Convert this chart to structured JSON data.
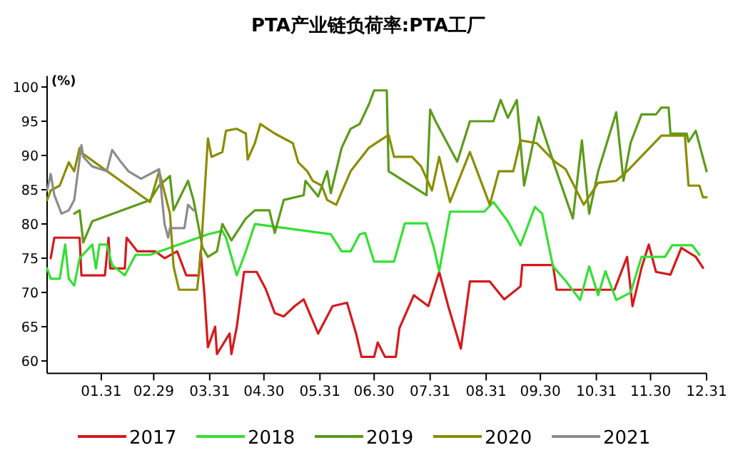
{
  "chart_data": {
    "type": "line",
    "title": "PTA产业链负荷率:PTA工厂",
    "ylabel": "(%)",
    "xlim": [
      "--01-01",
      "--12-31"
    ],
    "ylim": [
      58.2,
      101.6
    ],
    "yticks": [
      60,
      65,
      70,
      75,
      80,
      85,
      90,
      95,
      100
    ],
    "xticks": [
      {
        "value": "--01-31",
        "label": "01.31"
      },
      {
        "value": "--02-29",
        "label": "02.29"
      },
      {
        "value": "--03-31",
        "label": "03.31"
      },
      {
        "value": "--04-30",
        "label": "04.30"
      },
      {
        "value": "--05-31",
        "label": "05.31"
      },
      {
        "value": "--06-30",
        "label": "06.30"
      },
      {
        "value": "--07-31",
        "label": "07.31"
      },
      {
        "value": "--08-31",
        "label": "08.31"
      },
      {
        "value": "--09-30",
        "label": "09.30"
      },
      {
        "value": "--10-31",
        "label": "10.31"
      },
      {
        "value": "--11-30",
        "label": "11.30"
      },
      {
        "value": "--12-31",
        "label": "12.31"
      }
    ],
    "legend": "bottom",
    "grid": false,
    "marker": "none",
    "line_style": "solid",
    "series": [
      {
        "name": "2017",
        "color": "#d7191c",
        "x": [
          "--01-03",
          "--01-05",
          "--01-19",
          "--01-20",
          "--02-02",
          "--02-04",
          "--02-05",
          "--02-13",
          "--02-14",
          "--02-20",
          "--03-01",
          "--03-06",
          "--03-13",
          "--03-18",
          "--03-25",
          "--03-26",
          "--03-28",
          "--03-30",
          "--04-03",
          "--04-04",
          "--04-11",
          "--04-12",
          "--04-15",
          "--04-19",
          "--04-26",
          "--05-01",
          "--05-06",
          "--05-11",
          "--05-17",
          "--05-22",
          "--05-30",
          "--06-07",
          "--06-15",
          "--06-20",
          "--06-23",
          "--06-30",
          "--07-02",
          "--07-06",
          "--07-12",
          "--07-14",
          "--07-22",
          "--07-30",
          "--08-05",
          "--08-10",
          "--08-17",
          "--08-22",
          "--09-02",
          "--09-10",
          "--09-19",
          "--09-20",
          "--10-07",
          "--10-09",
          "--11-10",
          "--11-17",
          "--11-20",
          "--11-25",
          "--11-29",
          "--12-03",
          "--12-11",
          "--12-17",
          "--12-25",
          "--12-29"
        ],
        "values": [
          75,
          78,
          78,
          72.5,
          72.5,
          78,
          73.5,
          73.5,
          78,
          76,
          76,
          75,
          76,
          72.5,
          72.5,
          76,
          70,
          62,
          65,
          61,
          64,
          61,
          65,
          73,
          73,
          70.5,
          67,
          66.5,
          68,
          69,
          64,
          68,
          68.5,
          64,
          60.6,
          60.6,
          62.7,
          60.6,
          60.6,
          64.8,
          69.6,
          68,
          73,
          68,
          61.8,
          71.6,
          71.6,
          69,
          70.9,
          74,
          74,
          70.4,
          70.4,
          75.2,
          68,
          73.6,
          77,
          73,
          72.6,
          76.5,
          75.2,
          73.6
        ]
      },
      {
        "name": "2018",
        "color": "#33e033",
        "x": [
          "--01-01",
          "--01-03",
          "--01-08",
          "--01-11",
          "--01-13",
          "--01-16",
          "--01-19",
          "--01-26",
          "--01-28",
          "--01-30",
          "--02-03",
          "--02-06",
          "--02-13",
          "--02-19",
          "--02-27",
          "--03-30",
          "--04-07",
          "--04-09",
          "--04-15",
          "--04-20",
          "--04-25",
          "--06-06",
          "--06-12",
          "--06-17",
          "--06-22",
          "--06-25",
          "--06-30",
          "--07-11",
          "--07-17",
          "--07-29",
          "--08-02",
          "--08-05",
          "--08-11",
          "--08-30",
          "--09-04",
          "--09-12",
          "--09-19",
          "--09-27",
          "--10-01",
          "--10-07",
          "--10-14",
          "--10-22",
          "--10-27",
          "--11-01",
          "--11-05",
          "--11-11",
          "--11-19",
          "--11-25",
          "--12-08",
          "--12-12",
          "--12-23",
          "--12-27"
        ],
        "values": [
          73.5,
          72,
          72,
          77,
          72,
          71,
          75,
          77,
          73.5,
          77,
          77,
          74,
          72.5,
          75.5,
          75.5,
          78.5,
          79,
          78,
          72.5,
          76,
          80,
          78.5,
          76,
          76,
          78.5,
          78.7,
          74.5,
          74.5,
          80.1,
          80.1,
          76.6,
          73.1,
          81.8,
          81.8,
          83.2,
          80.4,
          76.9,
          82.5,
          81.5,
          73.8,
          71.7,
          68.9,
          73.8,
          69.6,
          73.1,
          68.9,
          70,
          75.2,
          75.2,
          76.9,
          76.9,
          75.5
        ]
      },
      {
        "name": "2019",
        "color": "#5b9b1a",
        "x": [
          "--01-16",
          "--01-19",
          "--01-21",
          "--01-26",
          "--02-27",
          "--03-03",
          "--03-09",
          "--03-11",
          "--03-19",
          "--03-22",
          "--03-27",
          "--03-30",
          "--04-04",
          "--04-07",
          "--04-12",
          "--04-20",
          "--04-25",
          "--05-03",
          "--05-06",
          "--05-11",
          "--05-22",
          "--05-23",
          "--05-30",
          "--06-04",
          "--06-06",
          "--06-12",
          "--06-17",
          "--06-22",
          "--06-27",
          "--06-30",
          "--07-07",
          "--07-08",
          "--07-29",
          "--07-31",
          "--08-03",
          "--08-15",
          "--08-22",
          "--09-04",
          "--09-08",
          "--09-12",
          "--09-17",
          "--09-21",
          "--09-29",
          "--10-08",
          "--10-18",
          "--10-23",
          "--10-27",
          "--11-01",
          "--11-11",
          "--11-15",
          "--11-19",
          "--11-25",
          "--12-03",
          "--12-06",
          "--12-10",
          "--12-11",
          "--12-20",
          "--12-21",
          "--12-25",
          "--12-31"
        ],
        "values": [
          81.5,
          82,
          77.3,
          80.4,
          83.5,
          85.6,
          87,
          82,
          86.3,
          83.5,
          76.6,
          75.2,
          76,
          80,
          77.6,
          80.8,
          82,
          82,
          78.7,
          83.5,
          84.2,
          86.3,
          84,
          87.7,
          84.5,
          91.1,
          93.9,
          94.6,
          97.4,
          99.5,
          99.5,
          87.7,
          84.2,
          96.7,
          95,
          89.1,
          95,
          95,
          98.1,
          95.5,
          98.1,
          85.6,
          95.6,
          88.4,
          80.8,
          92.2,
          81.5,
          87.7,
          96.3,
          86.3,
          91.9,
          96,
          96,
          97,
          97,
          93.2,
          93.2,
          92,
          93.6,
          87.7
        ]
      },
      {
        "name": "2020",
        "color": "#8c8c00",
        "x": [
          "--01-01",
          "--01-03",
          "--01-08",
          "--01-13",
          "--01-16",
          "--01-19",
          "--01-20",
          "--02-27",
          "--03-03",
          "--03-09",
          "--03-11",
          "--03-14",
          "--03-24",
          "--03-26",
          "--03-30",
          "--04-01",
          "--04-07",
          "--04-09",
          "--04-15",
          "--04-20",
          "--04-21",
          "--04-25",
          "--04-28",
          "--05-06",
          "--05-11",
          "--05-16",
          "--05-19",
          "--05-24",
          "--05-27",
          "--06-01",
          "--06-04",
          "--06-09",
          "--06-17",
          "--06-27",
          "--07-08",
          "--07-11",
          "--07-21",
          "--07-26",
          "--08-01",
          "--08-05",
          "--08-11",
          "--08-22",
          "--08-27",
          "--09-02",
          "--09-07",
          "--09-15",
          "--09-19",
          "--09-28",
          "--10-08",
          "--10-14",
          "--10-24",
          "--11-01",
          "--11-11",
          "--11-17",
          "--12-06",
          "--12-19",
          "--12-21",
          "--12-27",
          "--12-29",
          "--12-31"
        ],
        "values": [
          83.5,
          84.9,
          85.6,
          89,
          87.7,
          91.1,
          90.4,
          83.2,
          87.7,
          81.5,
          73.8,
          70.4,
          70.4,
          75.2,
          92.5,
          89.8,
          90.5,
          93.6,
          93.9,
          93.2,
          89.4,
          91.8,
          94.6,
          93.2,
          92.5,
          91.8,
          89,
          87.7,
          86.3,
          85.6,
          83.5,
          82.8,
          87.7,
          91.1,
          93,
          89.8,
          89.8,
          88.4,
          84.9,
          89.8,
          83.2,
          90.5,
          87,
          82.8,
          87.7,
          87.7,
          92.2,
          91.8,
          89.1,
          88,
          82.8,
          86,
          86.3,
          87.7,
          92.9,
          92.9,
          85.6,
          85.6,
          83.9,
          83.9
        ]
      },
      {
        "name": "2021",
        "color": "#8c8c8c",
        "x": [
          "--01-01",
          "--01-03",
          "--01-05",
          "--01-09",
          "--01-13",
          "--01-16",
          "--01-20",
          "--01-21",
          "--01-26",
          "--02-03",
          "--02-06",
          "--02-11",
          "--02-15",
          "--02-22",
          "--03-03",
          "--03-06",
          "--03-08",
          "--03-09",
          "--03-17",
          "--03-19",
          "--03-22"
        ],
        "values": [
          84.9,
          87.3,
          84.2,
          81.5,
          82,
          83.5,
          91.5,
          89.8,
          88.4,
          87.7,
          90.8,
          89,
          87.7,
          86.6,
          88,
          80,
          78,
          79.4,
          79.4,
          82.8,
          82
        ]
      }
    ]
  }
}
